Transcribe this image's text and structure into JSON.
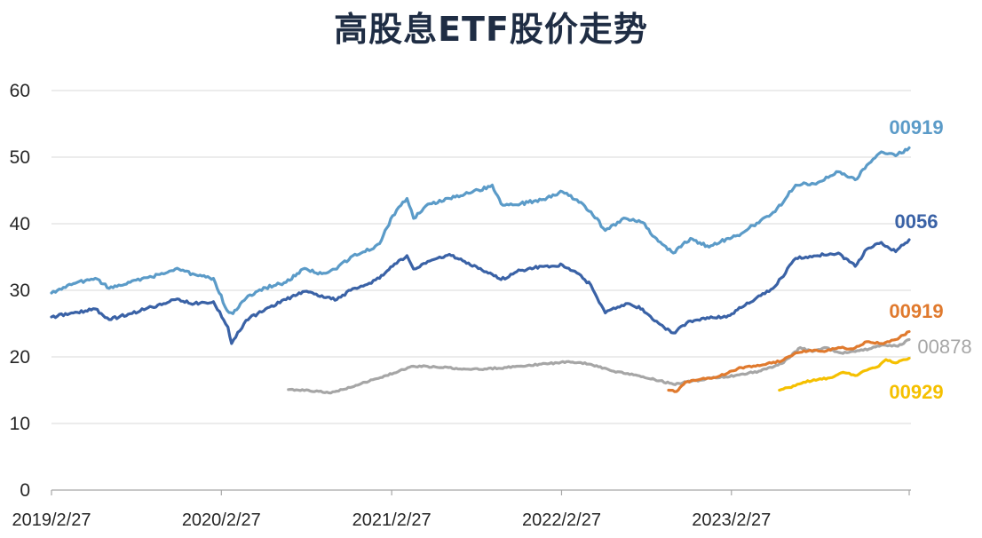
{
  "chart_data": {
    "type": "line",
    "title": "高股息ETF股价走势",
    "xlabel": "",
    "ylabel": "",
    "ylim": [
      0,
      60
    ],
    "yticks": [
      0,
      10,
      20,
      30,
      40,
      50,
      60
    ],
    "xlim": [
      "2019-02-27",
      "2024-03-15"
    ],
    "xticks": [
      {
        "date": "2019-02-27",
        "label": "2019/2/27"
      },
      {
        "date": "2020-02-27",
        "label": "2020/2/27"
      },
      {
        "date": "2021-02-27",
        "label": "2021/2/27"
      },
      {
        "date": "2022-02-27",
        "label": "2022/2/27"
      },
      {
        "date": "2023-02-27",
        "label": "2023/2/27"
      }
    ],
    "grid": true,
    "legend": "end-of-line labels",
    "series": [
      {
        "name": "00919",
        "color": "#5b9bc8",
        "label_weight": "bold",
        "points": [
          [
            "2019-02-27",
            29.6
          ],
          [
            "2019-04-15",
            31.0
          ],
          [
            "2019-06-01",
            31.8
          ],
          [
            "2019-07-01",
            30.3
          ],
          [
            "2019-08-15",
            31.2
          ],
          [
            "2019-10-01",
            32.0
          ],
          [
            "2019-11-20",
            33.2
          ],
          [
            "2019-12-31",
            32.4
          ],
          [
            "2020-02-10",
            31.8
          ],
          [
            "2020-03-10",
            27.0
          ],
          [
            "2020-03-23",
            26.5
          ],
          [
            "2020-04-20",
            28.8
          ],
          [
            "2020-06-01",
            30.4
          ],
          [
            "2020-07-15",
            31.2
          ],
          [
            "2020-08-20",
            33.2
          ],
          [
            "2020-09-30",
            32.5
          ],
          [
            "2020-11-01",
            33.2
          ],
          [
            "2020-12-01",
            35.0
          ],
          [
            "2021-01-01",
            35.8
          ],
          [
            "2021-02-01",
            37.0
          ],
          [
            "2021-03-01",
            41.2
          ],
          [
            "2021-04-01",
            43.8
          ],
          [
            "2021-04-15",
            40.8
          ],
          [
            "2021-05-20",
            43.0
          ],
          [
            "2021-07-01",
            43.8
          ],
          [
            "2021-08-15",
            44.6
          ],
          [
            "2021-10-01",
            45.8
          ],
          [
            "2021-10-20",
            43.0
          ],
          [
            "2021-12-01",
            43.0
          ],
          [
            "2022-01-15",
            43.6
          ],
          [
            "2022-03-01",
            44.8
          ],
          [
            "2022-04-01",
            43.6
          ],
          [
            "2022-05-01",
            41.8
          ],
          [
            "2022-06-01",
            39.0
          ],
          [
            "2022-07-15",
            40.8
          ],
          [
            "2022-08-20",
            40.2
          ],
          [
            "2022-09-15",
            38.0
          ],
          [
            "2022-10-25",
            35.6
          ],
          [
            "2022-12-01",
            37.8
          ],
          [
            "2023-01-10",
            36.5
          ],
          [
            "2023-02-20",
            37.8
          ],
          [
            "2023-03-20",
            38.5
          ],
          [
            "2023-05-01",
            40.5
          ],
          [
            "2023-06-01",
            41.8
          ],
          [
            "2023-07-15",
            45.8
          ],
          [
            "2023-09-01",
            46.2
          ],
          [
            "2023-10-15",
            47.8
          ],
          [
            "2023-11-20",
            46.6
          ],
          [
            "2023-12-15",
            48.8
          ],
          [
            "2024-01-15",
            50.8
          ],
          [
            "2024-02-15",
            50.2
          ],
          [
            "2024-03-15",
            51.4
          ]
        ]
      },
      {
        "name": "0056",
        "color": "#3a62a6",
        "label_weight": "bold",
        "points": [
          [
            "2019-02-27",
            26.0
          ],
          [
            "2019-04-15",
            26.6
          ],
          [
            "2019-06-01",
            27.2
          ],
          [
            "2019-07-01",
            25.6
          ],
          [
            "2019-08-15",
            26.5
          ],
          [
            "2019-10-01",
            27.5
          ],
          [
            "2019-11-20",
            28.6
          ],
          [
            "2019-12-31",
            28.0
          ],
          [
            "2020-02-10",
            28.3
          ],
          [
            "2020-03-12",
            24.5
          ],
          [
            "2020-03-20",
            22.0
          ],
          [
            "2020-04-20",
            25.5
          ],
          [
            "2020-06-01",
            27.2
          ],
          [
            "2020-07-15",
            28.6
          ],
          [
            "2020-08-20",
            29.8
          ],
          [
            "2020-09-30",
            29.2
          ],
          [
            "2020-11-01",
            28.6
          ],
          [
            "2020-12-01",
            30.0
          ],
          [
            "2021-01-01",
            30.8
          ],
          [
            "2021-02-01",
            31.8
          ],
          [
            "2021-03-01",
            33.6
          ],
          [
            "2021-04-01",
            35.2
          ],
          [
            "2021-04-15",
            33.2
          ],
          [
            "2021-05-20",
            34.4
          ],
          [
            "2021-07-01",
            35.4
          ],
          [
            "2021-08-15",
            33.8
          ],
          [
            "2021-10-01",
            32.4
          ],
          [
            "2021-10-20",
            31.6
          ],
          [
            "2021-12-01",
            33.0
          ],
          [
            "2022-01-15",
            33.6
          ],
          [
            "2022-03-01",
            33.8
          ],
          [
            "2022-04-01",
            32.6
          ],
          [
            "2022-05-01",
            30.8
          ],
          [
            "2022-06-01",
            26.6
          ],
          [
            "2022-07-15",
            28.0
          ],
          [
            "2022-08-20",
            27.2
          ],
          [
            "2022-09-15",
            25.4
          ],
          [
            "2022-10-25",
            23.6
          ],
          [
            "2022-12-01",
            25.4
          ],
          [
            "2023-01-10",
            25.8
          ],
          [
            "2023-02-20",
            26.2
          ],
          [
            "2023-03-20",
            27.4
          ],
          [
            "2023-05-01",
            29.2
          ],
          [
            "2023-06-01",
            30.6
          ],
          [
            "2023-07-15",
            34.8
          ],
          [
            "2023-09-01",
            35.2
          ],
          [
            "2023-10-15",
            35.6
          ],
          [
            "2023-11-20",
            33.6
          ],
          [
            "2023-12-15",
            36.2
          ],
          [
            "2024-01-15",
            37.2
          ],
          [
            "2024-02-15",
            35.8
          ],
          [
            "2024-03-15",
            37.6
          ]
        ]
      },
      {
        "name": "00919",
        "color": "#e07a2e",
        "label_weight": "bold",
        "points": [
          [
            "2022-10-15",
            15.0
          ],
          [
            "2022-11-01",
            14.8
          ],
          [
            "2022-11-20",
            16.2
          ],
          [
            "2022-12-20",
            16.6
          ],
          [
            "2023-01-20",
            16.9
          ],
          [
            "2023-02-20",
            17.6
          ],
          [
            "2023-03-20",
            18.4
          ],
          [
            "2023-04-20",
            18.6
          ],
          [
            "2023-05-15",
            19.0
          ],
          [
            "2023-06-15",
            19.4
          ],
          [
            "2023-07-15",
            20.6
          ],
          [
            "2023-08-15",
            21.0
          ],
          [
            "2023-09-15",
            20.8
          ],
          [
            "2023-10-15",
            21.4
          ],
          [
            "2023-11-15",
            21.2
          ],
          [
            "2023-12-15",
            22.3
          ],
          [
            "2024-01-15",
            22.0
          ],
          [
            "2024-02-15",
            22.6
          ],
          [
            "2024-03-15",
            23.8
          ]
        ]
      },
      {
        "name": "00878",
        "color": "#a6a6a6",
        "label_weight": "normal",
        "points": [
          [
            "2020-07-20",
            15.1
          ],
          [
            "2020-09-01",
            15.0
          ],
          [
            "2020-10-15",
            14.6
          ],
          [
            "2020-11-30",
            15.4
          ],
          [
            "2021-01-01",
            16.2
          ],
          [
            "2021-02-15",
            17.2
          ],
          [
            "2021-04-15",
            18.6
          ],
          [
            "2021-06-01",
            18.5
          ],
          [
            "2021-08-01",
            18.2
          ],
          [
            "2021-09-15",
            18.2
          ],
          [
            "2021-11-01",
            18.4
          ],
          [
            "2021-12-15",
            18.7
          ],
          [
            "2022-02-01",
            19.0
          ],
          [
            "2022-03-10",
            19.3
          ],
          [
            "2022-05-01",
            18.9
          ],
          [
            "2022-06-15",
            17.9
          ],
          [
            "2022-08-01",
            17.3
          ],
          [
            "2022-09-15",
            16.6
          ],
          [
            "2022-10-25",
            15.9
          ],
          [
            "2022-12-01",
            16.3
          ],
          [
            "2023-01-15",
            16.8
          ],
          [
            "2023-02-15",
            17.0
          ],
          [
            "2023-03-15",
            17.3
          ],
          [
            "2023-05-01",
            17.9
          ],
          [
            "2023-06-15",
            19.0
          ],
          [
            "2023-07-25",
            21.4
          ],
          [
            "2023-08-20",
            20.8
          ],
          [
            "2023-09-15",
            21.4
          ],
          [
            "2023-10-20",
            20.6
          ],
          [
            "2023-11-20",
            20.8
          ],
          [
            "2023-12-20",
            21.2
          ],
          [
            "2024-01-20",
            21.8
          ],
          [
            "2024-02-20",
            21.6
          ],
          [
            "2024-03-15",
            22.6
          ]
        ]
      },
      {
        "name": "00929",
        "color": "#f5c000",
        "label_weight": "bold",
        "points": [
          [
            "2023-06-10",
            15.0
          ],
          [
            "2023-07-01",
            15.4
          ],
          [
            "2023-08-01",
            16.2
          ],
          [
            "2023-09-01",
            16.6
          ],
          [
            "2023-10-01",
            16.9
          ],
          [
            "2023-10-25",
            17.7
          ],
          [
            "2023-11-20",
            17.2
          ],
          [
            "2023-12-15",
            18.0
          ],
          [
            "2024-01-10",
            18.6
          ],
          [
            "2024-01-25",
            19.6
          ],
          [
            "2024-02-15",
            19.1
          ],
          [
            "2024-03-15",
            19.8
          ]
        ]
      }
    ]
  }
}
